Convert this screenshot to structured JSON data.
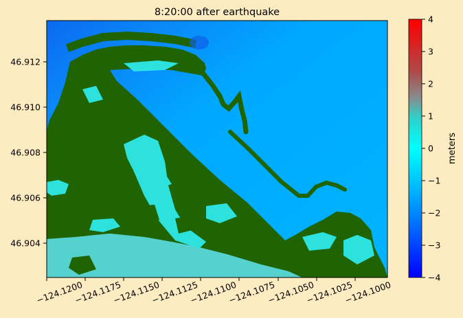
{
  "title": "8:20:00 after earthquake",
  "x_ticks": [
    "−124.1200",
    "−124.1175",
    "−124.1150",
    "−124.1125",
    "−124.1100",
    "−124.1075",
    "−124.1050",
    "−124.1025",
    "−124.1000"
  ],
  "y_ticks": [
    "46.912",
    "46.910",
    "46.908",
    "46.906",
    "46.904"
  ],
  "colorbar": {
    "label": "meters",
    "ticks": [
      "4",
      "3",
      "2",
      "1",
      "0",
      "−1",
      "−2",
      "−3",
      "−4"
    ],
    "range": [
      -4,
      4
    ]
  },
  "colors": {
    "land": "#1f6400",
    "water_deep": "#0a6af0",
    "water_main": "#00aaff",
    "flooded": "#2ee8e8",
    "background": "#fdebc1"
  }
}
